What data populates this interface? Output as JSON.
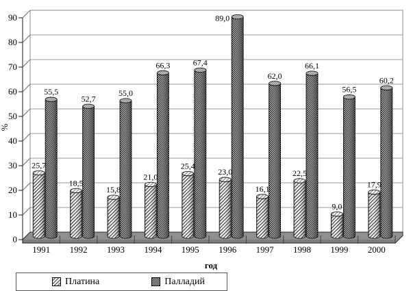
{
  "chart_data": {
    "type": "bar",
    "style": "3d-cylinder",
    "title": "",
    "categories": [
      "1991",
      "1992",
      "1993",
      "1994",
      "1995",
      "1996",
      "1997",
      "1998",
      "1999",
      "2000"
    ],
    "series": [
      {
        "name": "Платина",
        "pattern": "diagonal-hatch",
        "values": [
          25.7,
          18.5,
          15.8,
          21.0,
          25.4,
          23.0,
          16.1,
          22.5,
          9.0,
          17.9
        ],
        "labels": [
          "25,7",
          "18,5",
          "15,8",
          "21,0",
          "25,4",
          "23,0",
          "16,1",
          "22,5",
          "9,0",
          "17,9"
        ]
      },
      {
        "name": "Палладий",
        "pattern": "checkerboard",
        "values": [
          55.5,
          52.7,
          55.0,
          66.3,
          67.4,
          89.0,
          62.0,
          66.1,
          56.5,
          60.2
        ],
        "labels": [
          "55,5",
          "52,7",
          "55,0",
          "66,3",
          "67,4",
          "89,0",
          "62,0",
          "66,1",
          "56,5",
          "60,2"
        ]
      }
    ],
    "xlabel": "год",
    "ylabel": "%",
    "ylim": [
      0,
      90
    ],
    "ytick_step": 10,
    "yticks": [
      "0",
      "10",
      "20",
      "30",
      "40",
      "50",
      "60",
      "70",
      "80",
      "90"
    ],
    "grid": true,
    "legend_position": "bottom",
    "colors": {
      "floor": "#8f8f8f",
      "floor_front": "#7a7a7a",
      "grid": "#9a9a9a",
      "axis": "#404040",
      "bar_outline": "#1a1a1a",
      "wall_border": "#8a8a8a"
    }
  },
  "legend": {
    "items": [
      {
        "label": "Платина"
      },
      {
        "label": "Палладий"
      }
    ]
  }
}
